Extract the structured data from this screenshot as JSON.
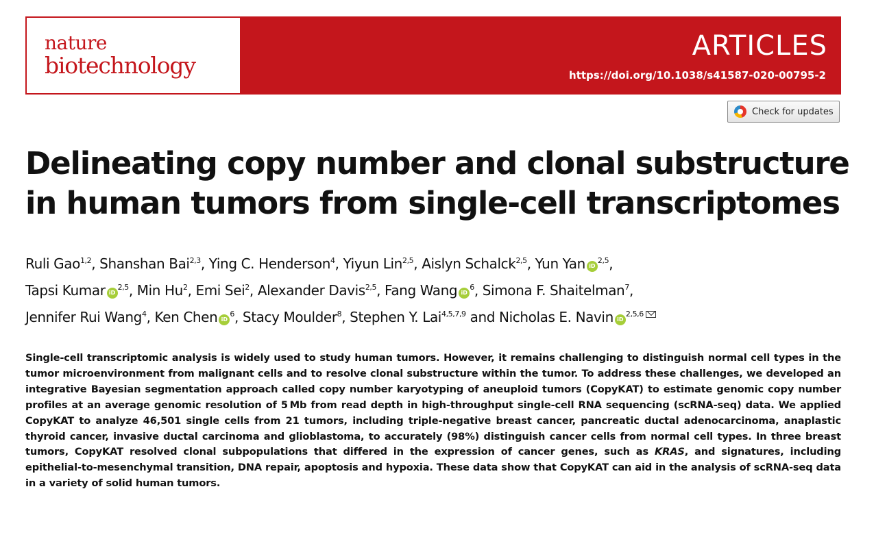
{
  "journal": {
    "logo_line1": "nature",
    "logo_line2": "biotechnology",
    "section": "ARTICLES",
    "doi": "https://doi.org/10.1038/s41587-020-00795-2",
    "brand_color": "#c4161c"
  },
  "updates_button": {
    "label": "Check for updates",
    "icon": "crossmark-icon"
  },
  "title": {
    "line1": "Delineating copy number and clonal substructure",
    "line2": "in human tumors from single-cell transcriptomes"
  },
  "authors": [
    {
      "name": "Ruli Gao",
      "aff": "1,2",
      "orcid": false
    },
    {
      "name": "Shanshan Bai",
      "aff": "2,3",
      "orcid": false
    },
    {
      "name": "Ying C. Henderson",
      "aff": "4",
      "orcid": false
    },
    {
      "name": "Yiyun Lin",
      "aff": "2,5",
      "orcid": false
    },
    {
      "name": "Aislyn Schalck",
      "aff": "2,5",
      "orcid": false
    },
    {
      "name": "Yun Yan",
      "aff": "2,5",
      "orcid": true
    },
    {
      "name": "Tapsi Kumar",
      "aff": "2,5",
      "orcid": true
    },
    {
      "name": "Min Hu",
      "aff": "2",
      "orcid": false
    },
    {
      "name": "Emi Sei",
      "aff": "2",
      "orcid": false
    },
    {
      "name": "Alexander Davis",
      "aff": "2,5",
      "orcid": false
    },
    {
      "name": "Fang Wang",
      "aff": "6",
      "orcid": true
    },
    {
      "name": "Simona F. Shaitelman",
      "aff": "7",
      "orcid": false
    },
    {
      "name": "Jennifer Rui Wang",
      "aff": "4",
      "orcid": false
    },
    {
      "name": "Ken Chen",
      "aff": "6",
      "orcid": true
    },
    {
      "name": "Stacy Moulder",
      "aff": "8",
      "orcid": false
    },
    {
      "name": "Stephen Y. Lai",
      "aff": "4,5,7,9",
      "orcid": false
    },
    {
      "name": "Nicholas E. Navin",
      "aff": "2,5,6",
      "orcid": true,
      "corresponding": true
    }
  ],
  "authors_conjunction": "and",
  "orcid_glyph": "iD",
  "abstract": {
    "part1": "Single-cell transcriptomic analysis is widely used to study human tumors. However, it remains challenging to distinguish nor­mal cell types in the tumor microenvironment from malignant cells and to resolve clonal substructure within the tumor. To address these challenges, we developed an integrative Bayesian segmentation approach called copy number karyotyping of aneuploid tumors (CopyKAT) to estimate genomic copy number profiles at an average genomic resolution of 5 Mb from read depth in high-throughput single-cell RNA sequencing (scRNA-seq) data. We applied CopyKAT to analyze 46,501 single cells from 21 tumors, including triple-negative breast cancer, pancreatic ductal adenocarcinoma, anaplastic thyroid cancer, invasive ductal carcinoma and glioblastoma, to accurately (98%) distinguish cancer cells from normal cell types. In three breast tumors, CopyKAT resolved clonal subpopulations that differed in the expression of cancer genes, such as ",
    "gene": "KRAS",
    "part2": ", and signatures, includ­ing epithelial-to-mesenchymal transition, DNA repair, apoptosis and hypoxia. These data show that CopyKAT can aid in the analysis of scRNA-seq data in a variety of solid human tumors."
  }
}
